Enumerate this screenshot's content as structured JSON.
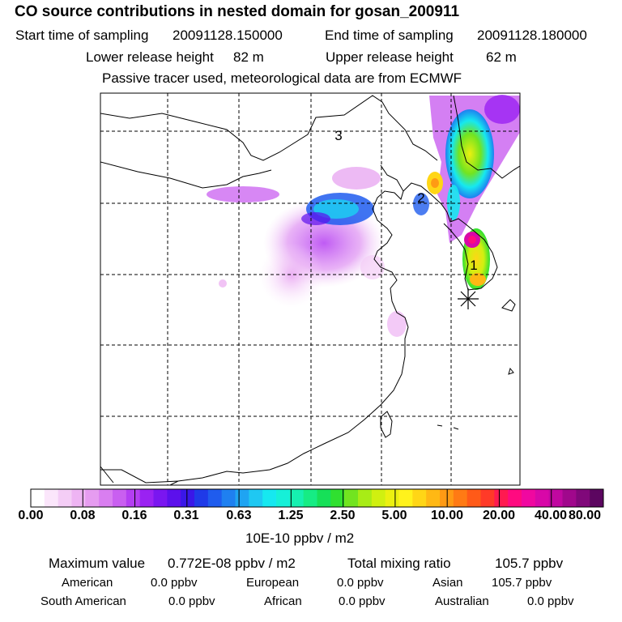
{
  "title": "CO  source contributions in nested domain for gosan_200911",
  "header": {
    "start_label": "Start time of sampling",
    "start_value": "20091128.150000",
    "end_label": "End time of sampling",
    "end_value": "20091128.180000",
    "lower_label": "Lower release height",
    "lower_value": "82 m",
    "upper_label": "Upper release height",
    "upper_value": "62 m",
    "note": "Passive tracer used, meteorological data are from ECMWF"
  },
  "map": {
    "site_labels": [
      "1",
      "2",
      "3"
    ],
    "receptor_marker": "asterisk"
  },
  "colorbar": {
    "ticks": [
      "0.00",
      "0.08",
      "0.16",
      "0.31",
      "0.63",
      "1.25",
      "2.50",
      "5.00",
      "10.00",
      "20.00",
      "40.00",
      "80.00"
    ],
    "unit": "10E-10 ppbv / m2",
    "colors": [
      "#ffffff",
      "#fbe6fb",
      "#f4cdf6",
      "#eeb4f3",
      "#e69cf0",
      "#d97ef0",
      "#c95ff0",
      "#b43ef2",
      "#9a22f2",
      "#7a16f0",
      "#5c10ec",
      "#3a17e8",
      "#1f3ae8",
      "#1f5cee",
      "#1f80f0",
      "#1fa4f2",
      "#1fc8f2",
      "#16e8f0",
      "#16f0d8",
      "#16f0b0",
      "#16ec84",
      "#16e058",
      "#30e030",
      "#72e420",
      "#a8ec16",
      "#d0f010",
      "#ecf010",
      "#fff21c",
      "#ffd616",
      "#ffb814",
      "#ff9a14",
      "#ff7a14",
      "#ff5a18",
      "#ff3a28",
      "#ff1a50",
      "#ff0a80",
      "#f008a0",
      "#d808a8",
      "#c008a0",
      "#a0088c",
      "#80087a",
      "#5c0660"
    ]
  },
  "stats": {
    "max_label": "Maximum value",
    "max_value": "0.772E-08 ppbv / m2",
    "total_label": "Total mixing ratio",
    "total_value": "105.7 ppbv"
  },
  "regions": [
    {
      "name": "American",
      "value": "0.0 ppbv"
    },
    {
      "name": "European",
      "value": "0.0 ppbv"
    },
    {
      "name": "Asian",
      "value": "105.7 ppbv"
    },
    {
      "name": "South American",
      "value": "0.0 ppbv"
    },
    {
      "name": "African",
      "value": "0.0 ppbv"
    },
    {
      "name": "Australian",
      "value": "0.0 ppbv"
    }
  ]
}
